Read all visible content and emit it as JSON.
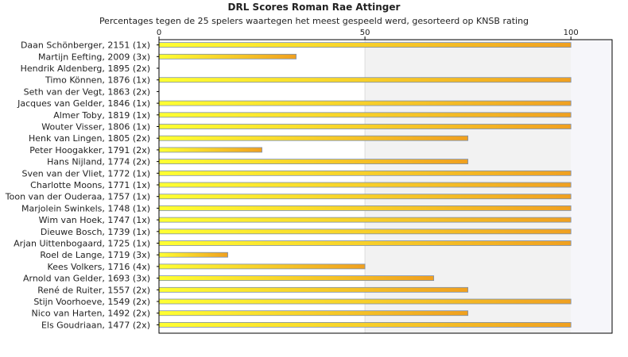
{
  "chart_data": {
    "type": "bar",
    "orientation": "horizontal",
    "title": "DRL Scores Roman Rae Attinger",
    "subtitle": "Percentages tegen de 25 spelers waartegen het meest gespeeld werd, gesorteerd op KNSB rating",
    "categories": [
      "Daan Schönberger, 2151 (1x)",
      "Martijn Eefting, 2009 (3x)",
      "Hendrik Aldenberg, 1895 (2x)",
      "Timo Können, 1876 (1x)",
      "Seth van der Vegt, 1863 (2x)",
      "Jacques van Gelder, 1846 (1x)",
      "Almer Toby, 1819 (1x)",
      "Wouter Visser, 1806 (1x)",
      "Henk van Lingen, 1805 (2x)",
      "Peter Hoogakker, 1791 (2x)",
      "Hans Nijland, 1774 (2x)",
      "Sven van der Vliet, 1772 (1x)",
      "Charlotte Moons, 1771 (1x)",
      "Toon van der Ouderaa, 1757 (1x)",
      "Marjolein Swinkels, 1748 (1x)",
      "Wim van Hoek, 1747 (1x)",
      "Dieuwe Bosch, 1739 (1x)",
      "Arjan Uittenbogaard, 1725 (1x)",
      "Roel de Lange, 1719 (3x)",
      "Kees Volkers, 1716 (4x)",
      "Arnold van Gelder, 1693 (3x)",
      "René de Ruiter, 1557 (2x)",
      "Stijn Voorhoeve, 1549 (2x)",
      "Nico van Harten, 1492 (2x)",
      "Els Goudriaan, 1477 (2x)"
    ],
    "values": [
      100,
      33.3,
      0,
      100,
      0,
      100,
      100,
      100,
      75,
      25,
      75,
      100,
      100,
      100,
      100,
      100,
      100,
      100,
      16.7,
      50,
      66.7,
      75,
      100,
      75,
      100
    ],
    "xlim": [
      0,
      110
    ],
    "xticks": [
      0,
      50,
      100
    ],
    "colors": {
      "bar_start": "#ffff33",
      "bar_end": "#f0a020",
      "bar_edge": "#7a90b0",
      "band_fill": "#f2f2f2",
      "band_light": "#f6f6fa",
      "frame": "#000000"
    }
  }
}
